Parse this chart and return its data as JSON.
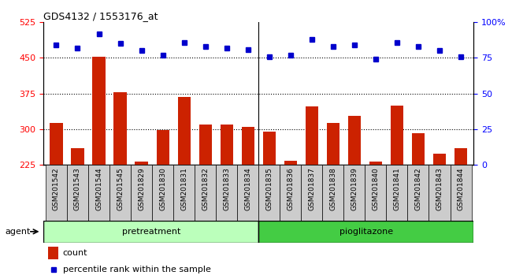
{
  "title": "GDS4132 / 1553176_at",
  "categories": [
    "GSM201542",
    "GSM201543",
    "GSM201544",
    "GSM201545",
    "GSM201829",
    "GSM201830",
    "GSM201831",
    "GSM201832",
    "GSM201833",
    "GSM201834",
    "GSM201835",
    "GSM201836",
    "GSM201837",
    "GSM201838",
    "GSM201839",
    "GSM201840",
    "GSM201841",
    "GSM201842",
    "GSM201843",
    "GSM201844"
  ],
  "count_values": [
    313,
    260,
    452,
    378,
    231,
    298,
    368,
    310,
    310,
    304,
    295,
    233,
    348,
    313,
    328,
    231,
    350,
    291,
    248,
    260
  ],
  "percentile_values": [
    84,
    82,
    92,
    85,
    80,
    77,
    86,
    83,
    82,
    81,
    76,
    77,
    88,
    83,
    84,
    74,
    86,
    83,
    80,
    76
  ],
  "pretreatment_count": 10,
  "pioglitazone_count": 10,
  "ylim_left": [
    225,
    525
  ],
  "ylim_right": [
    0,
    100
  ],
  "yticks_left": [
    225,
    300,
    375,
    450,
    525
  ],
  "yticks_right": [
    0,
    25,
    50,
    75,
    100
  ],
  "bar_color": "#cc2200",
  "dot_color": "#0000cc",
  "pretreatment_color": "#bbffbb",
  "pioglitazone_color": "#44cc44",
  "agent_label": "agent",
  "pretreatment_label": "pretreatment",
  "pioglitazone_label": "pioglitazone",
  "legend_count_label": "count",
  "legend_percentile_label": "percentile rank within the sample",
  "grid_lines": [
    300,
    375,
    450
  ],
  "plot_bg": "#ffffff",
  "label_bg": "#cccccc"
}
